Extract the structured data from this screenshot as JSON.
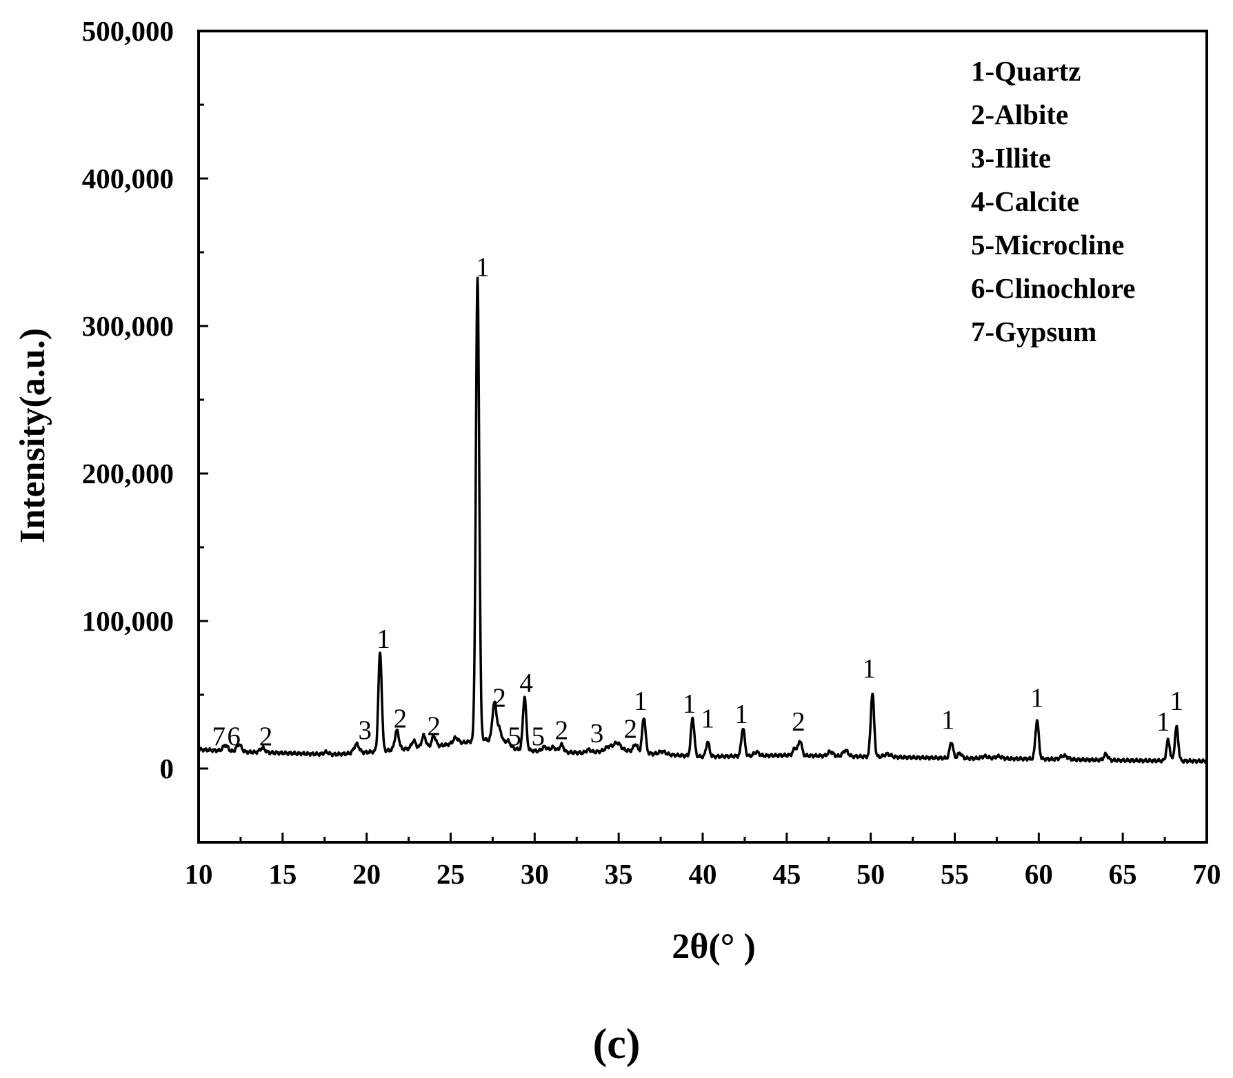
{
  "chart_data": {
    "type": "line",
    "xlabel": "2θ(°  )",
    "ylabel": "Intensity(a.u.)",
    "xlim": [
      10,
      70
    ],
    "ylim": [
      -50000,
      500000
    ],
    "xticks": [
      10,
      15,
      20,
      25,
      30,
      35,
      40,
      45,
      50,
      55,
      60,
      65,
      70
    ],
    "xtick_labels": [
      "10",
      "15",
      "20",
      "25",
      "30",
      "35",
      "40",
      "45",
      "50",
      "55",
      "60",
      "65",
      "70"
    ],
    "yticks": [
      0,
      100000,
      200000,
      300000,
      400000,
      500000
    ],
    "ytick_labels": [
      "0",
      "100,000",
      "200,000",
      "300,000",
      "400,000",
      "500,000"
    ],
    "grid": false,
    "legend_placement": "top-right",
    "legend": [
      "1-Quartz",
      "2-Albite",
      "3-Illite",
      "4-Calcite",
      "5-Microcline",
      "6-Clinochlore",
      "7-Gypsum"
    ],
    "panel_label": "(c)",
    "series": [
      {
        "color": "#000000",
        "baseline": [
          [
            10,
            13000
          ],
          [
            12,
            11500
          ],
          [
            15,
            10500
          ],
          [
            18,
            9500
          ],
          [
            20,
            11000
          ],
          [
            24,
            15000
          ],
          [
            26,
            18000
          ],
          [
            27,
            20000
          ],
          [
            28,
            16000
          ],
          [
            29,
            13000
          ],
          [
            30,
            12000
          ],
          [
            33,
            10500
          ],
          [
            35,
            13000
          ],
          [
            37,
            10000
          ],
          [
            40,
            8000
          ],
          [
            45,
            9000
          ],
          [
            50,
            8000
          ],
          [
            55,
            7000
          ],
          [
            60,
            6500
          ],
          [
            65,
            5500
          ],
          [
            70,
            5000
          ]
        ],
        "peaks": [
          {
            "x": 11.6,
            "h": 4000,
            "w": 0.15
          },
          {
            "x": 12.4,
            "h": 5000,
            "w": 0.15
          },
          {
            "x": 13.8,
            "h": 3000,
            "w": 0.15
          },
          {
            "x": 17.6,
            "h": 1500,
            "w": 0.15
          },
          {
            "x": 19.4,
            "h": 6000,
            "w": 0.15
          },
          {
            "x": 20.8,
            "h": 67000,
            "w": 0.1
          },
          {
            "x": 21.8,
            "h": 13000,
            "w": 0.12
          },
          {
            "x": 22.8,
            "h": 5000,
            "w": 0.12
          },
          {
            "x": 23.4,
            "h": 8000,
            "w": 0.12
          },
          {
            "x": 24.0,
            "h": 7000,
            "w": 0.12
          },
          {
            "x": 25.3,
            "h": 4000,
            "w": 0.15
          },
          {
            "x": 26.6,
            "h": 313000,
            "w": 0.1
          },
          {
            "x": 27.6,
            "h": 26000,
            "w": 0.12
          },
          {
            "x": 27.9,
            "h": 10000,
            "w": 0.15
          },
          {
            "x": 28.4,
            "h": 4000,
            "w": 0.15
          },
          {
            "x": 29.4,
            "h": 36000,
            "w": 0.1
          },
          {
            "x": 30.6,
            "h": 3000,
            "w": 0.15
          },
          {
            "x": 31.1,
            "h": 3000,
            "w": 0.15
          },
          {
            "x": 31.6,
            "h": 5000,
            "w": 0.12
          },
          {
            "x": 33.2,
            "h": 2000,
            "w": 0.15
          },
          {
            "x": 34.4,
            "h": 2500,
            "w": 0.2
          },
          {
            "x": 34.9,
            "h": 4500,
            "w": 0.2
          },
          {
            "x": 36.0,
            "h": 5000,
            "w": 0.12
          },
          {
            "x": 36.5,
            "h": 24000,
            "w": 0.1
          },
          {
            "x": 37.6,
            "h": 2000,
            "w": 0.2
          },
          {
            "x": 39.4,
            "h": 26000,
            "w": 0.1
          },
          {
            "x": 40.3,
            "h": 10000,
            "w": 0.1
          },
          {
            "x": 42.4,
            "h": 19000,
            "w": 0.1
          },
          {
            "x": 43.2,
            "h": 2500,
            "w": 0.15
          },
          {
            "x": 45.5,
            "h": 5000,
            "w": 0.12
          },
          {
            "x": 45.8,
            "h": 10000,
            "w": 0.1
          },
          {
            "x": 47.6,
            "h": 3000,
            "w": 0.15
          },
          {
            "x": 48.5,
            "h": 4000,
            "w": 0.15
          },
          {
            "x": 50.1,
            "h": 43000,
            "w": 0.1
          },
          {
            "x": 51.0,
            "h": 2000,
            "w": 0.2
          },
          {
            "x": 54.8,
            "h": 11000,
            "w": 0.1
          },
          {
            "x": 55.3,
            "h": 3500,
            "w": 0.12
          },
          {
            "x": 56.8,
            "h": 1500,
            "w": 0.2
          },
          {
            "x": 57.6,
            "h": 1500,
            "w": 0.2
          },
          {
            "x": 59.9,
            "h": 26000,
            "w": 0.1
          },
          {
            "x": 61.5,
            "h": 2500,
            "w": 0.2
          },
          {
            "x": 64.0,
            "h": 4000,
            "w": 0.12
          },
          {
            "x": 67.7,
            "h": 14000,
            "w": 0.1
          },
          {
            "x": 68.2,
            "h": 23000,
            "w": 0.1
          }
        ]
      }
    ],
    "annotations": [
      {
        "text": "7",
        "x": 11.2,
        "y": 16000
      },
      {
        "text": "6",
        "x": 12.1,
        "y": 16000
      },
      {
        "text": "2",
        "x": 14.0,
        "y": 16000
      },
      {
        "text": "3",
        "x": 19.9,
        "y": 20000
      },
      {
        "text": "1",
        "x": 21.0,
        "y": 82000
      },
      {
        "text": "2",
        "x": 22.0,
        "y": 28000
      },
      {
        "text": "2",
        "x": 24.0,
        "y": 23000
      },
      {
        "text": "1",
        "x": 26.9,
        "y": 334000
      },
      {
        "text": "2",
        "x": 27.9,
        "y": 42000
      },
      {
        "text": "5",
        "x": 28.8,
        "y": 16000
      },
      {
        "text": "4",
        "x": 29.5,
        "y": 52000
      },
      {
        "text": "5",
        "x": 30.2,
        "y": 16000
      },
      {
        "text": "2",
        "x": 31.6,
        "y": 20000
      },
      {
        "text": "3",
        "x": 33.7,
        "y": 18000
      },
      {
        "text": "2",
        "x": 35.7,
        "y": 21000
      },
      {
        "text": "1",
        "x": 36.3,
        "y": 40000
      },
      {
        "text": "1",
        "x": 39.2,
        "y": 38000
      },
      {
        "text": "1",
        "x": 40.3,
        "y": 28000
      },
      {
        "text": "1",
        "x": 42.3,
        "y": 31000
      },
      {
        "text": "2",
        "x": 45.7,
        "y": 26000
      },
      {
        "text": "1",
        "x": 49.9,
        "y": 62000
      },
      {
        "text": "1",
        "x": 54.6,
        "y": 27000
      },
      {
        "text": "1",
        "x": 59.9,
        "y": 42000
      },
      {
        "text": "1",
        "x": 67.4,
        "y": 26000
      },
      {
        "text": "1",
        "x": 68.2,
        "y": 40000
      }
    ]
  }
}
